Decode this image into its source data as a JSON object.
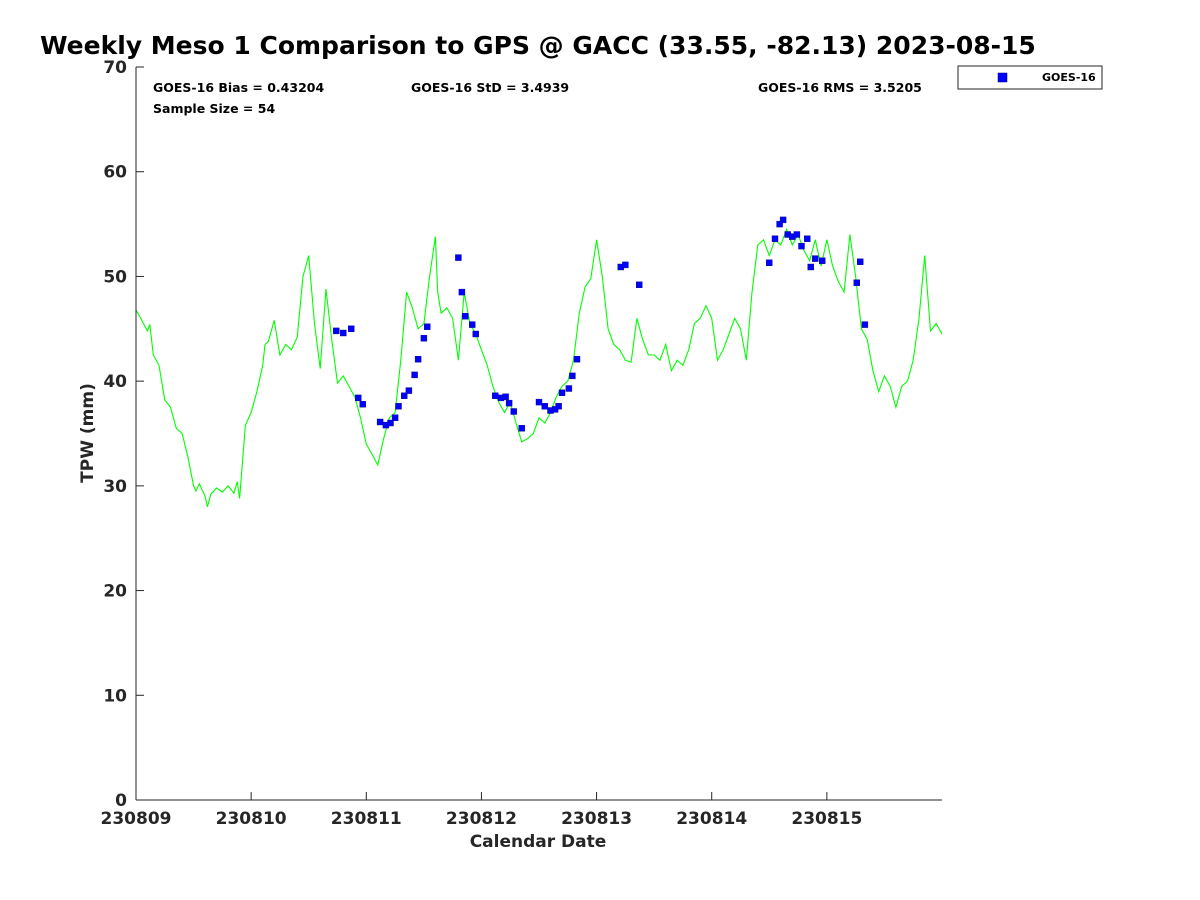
{
  "chart_data": {
    "type": "scatter",
    "title": "Weekly Meso 1 Comparison to GPS @ GACC (33.55, -82.13) 2023-08-15",
    "xlabel": "Calendar Date",
    "ylabel": "TPW (mm)",
    "xlim": [
      230809,
      230816
    ],
    "ylim": [
      0,
      70
    ],
    "x_ticks": [
      230809,
      230810,
      230811,
      230812,
      230813,
      230814,
      230815
    ],
    "x_tick_labels": [
      "230809",
      "230810",
      "230811",
      "230812",
      "230813",
      "230814",
      "230815"
    ],
    "y_ticks": [
      0,
      10,
      20,
      30,
      40,
      50,
      60,
      70
    ],
    "y_tick_labels": [
      "0",
      "10",
      "20",
      "30",
      "40",
      "50",
      "60",
      "70"
    ],
    "grid": false,
    "legend": {
      "position": "top-right-outside",
      "entries": [
        "GOES-16"
      ]
    },
    "stats": {
      "bias": "GOES-16 Bias = 0.43204",
      "std": "GOES-16 StD = 3.4939",
      "rms": "GOES-16 RMS = 3.5205",
      "sample": "Sample Size = 54"
    },
    "series": [
      {
        "name": "GOES-16",
        "kind": "scatter",
        "marker": "square",
        "color": "#0000ff",
        "x": [
          230810.74,
          230810.8,
          230810.87,
          230810.93,
          230810.97,
          230811.12,
          230811.17,
          230811.21,
          230811.25,
          230811.28,
          230811.33,
          230811.37,
          230811.42,
          230811.45,
          230811.5,
          230811.53,
          230811.8,
          230811.83,
          230811.86,
          230811.92,
          230811.95,
          230812.12,
          230812.17,
          230812.21,
          230812.24,
          230812.28,
          230812.35,
          230812.5,
          230812.55,
          230812.6,
          230812.64,
          230812.67,
          230812.7,
          230812.76,
          230812.79,
          230812.83,
          230813.21,
          230813.25,
          230813.37,
          230814.5,
          230814.55,
          230814.59,
          230814.62,
          230814.66,
          230814.7,
          230814.74,
          230814.78,
          230814.83,
          230814.86,
          230814.9,
          230814.96,
          230815.26,
          230815.29,
          230815.33
        ],
        "y": [
          44.8,
          44.6,
          45.0,
          38.4,
          37.8,
          36.1,
          35.8,
          36.0,
          36.5,
          37.6,
          38.6,
          39.1,
          40.6,
          42.1,
          44.1,
          45.2,
          51.8,
          48.5,
          46.2,
          45.4,
          44.5,
          38.6,
          38.4,
          38.5,
          37.9,
          37.1,
          35.5,
          38.0,
          37.6,
          37.2,
          37.3,
          37.6,
          38.9,
          39.3,
          40.5,
          42.1,
          50.9,
          51.1,
          49.2,
          51.3,
          53.6,
          55.0,
          55.4,
          54.0,
          53.8,
          54.0,
          52.9,
          53.6,
          50.9,
          51.7,
          51.5,
          49.4,
          51.4,
          45.4
        ]
      },
      {
        "name": "GPS",
        "kind": "line",
        "color": "#00ff00",
        "x": [
          230809.0,
          230809.05,
          230809.1,
          230809.12,
          230809.15,
          230809.2,
          230809.25,
          230809.3,
          230809.35,
          230809.4,
          230809.45,
          230809.5,
          230809.52,
          230809.55,
          230809.6,
          230809.62,
          230809.65,
          230809.7,
          230809.75,
          230809.8,
          230809.85,
          230809.88,
          230809.9,
          230809.95,
          230810.0,
          230810.05,
          230810.1,
          230810.12,
          230810.15,
          230810.2,
          230810.25,
          230810.3,
          230810.35,
          230810.4,
          230810.45,
          230810.5,
          230810.55,
          230810.6,
          230810.65,
          230810.7,
          230810.75,
          230810.8,
          230810.85,
          230810.9,
          230810.95,
          230811.0,
          230811.05,
          230811.1,
          230811.15,
          230811.2,
          230811.25,
          230811.3,
          230811.35,
          230811.4,
          230811.45,
          230811.5,
          230811.55,
          230811.6,
          230811.62,
          230811.65,
          230811.7,
          230811.75,
          230811.8,
          230811.85,
          230811.9,
          230811.95,
          230812.0,
          230812.05,
          230812.1,
          230812.15,
          230812.2,
          230812.25,
          230812.3,
          230812.35,
          230812.4,
          230812.45,
          230812.5,
          230812.55,
          230812.6,
          230812.65,
          230812.7,
          230812.75,
          230812.8,
          230812.85,
          230812.9,
          230812.95,
          230813.0,
          230813.05,
          230813.1,
          230813.15,
          230813.2,
          230813.25,
          230813.3,
          230813.35,
          230813.4,
          230813.45,
          230813.5,
          230813.55,
          230813.6,
          230813.65,
          230813.7,
          230813.75,
          230813.8,
          230813.85,
          230813.9,
          230813.95,
          230814.0,
          230814.05,
          230814.1,
          230814.15,
          230814.2,
          230814.25,
          230814.3,
          230814.35,
          230814.4,
          230814.45,
          230814.5,
          230814.55,
          230814.6,
          230814.65,
          230814.7,
          230814.75,
          230814.8,
          230814.85,
          230814.9,
          230814.95,
          230815.0,
          230815.05,
          230815.1,
          230815.15,
          230815.2,
          230815.25,
          230815.3,
          230815.35,
          230815.4,
          230815.45,
          230815.5,
          230815.55,
          230815.6,
          230815.65,
          230815.7,
          230815.75,
          230815.8,
          230815.85,
          230815.9,
          230815.95,
          230816.0
        ],
        "y": [
          46.8,
          45.8,
          44.8,
          45.4,
          42.5,
          41.5,
          38.2,
          37.5,
          35.5,
          35.0,
          32.8,
          30.0,
          29.5,
          30.2,
          29.0,
          28.0,
          29.2,
          29.8,
          29.4,
          30.0,
          29.3,
          30.4,
          28.8,
          35.8,
          37.0,
          39.0,
          41.5,
          43.5,
          43.8,
          45.8,
          42.5,
          43.5,
          43.0,
          44.2,
          50.0,
          52.0,
          45.5,
          41.2,
          48.8,
          44.0,
          39.8,
          40.5,
          39.5,
          38.5,
          36.5,
          34.0,
          33.0,
          32.0,
          34.5,
          36.5,
          37.0,
          42.0,
          48.5,
          47.0,
          45.0,
          45.5,
          50.0,
          53.8,
          48.5,
          46.5,
          47.0,
          46.0,
          42.0,
          48.5,
          45.5,
          44.5,
          43.0,
          41.5,
          39.5,
          38.0,
          37.0,
          38.0,
          36.0,
          34.2,
          34.5,
          35.0,
          36.5,
          36.0,
          37.0,
          38.5,
          39.5,
          40.0,
          42.0,
          46.5,
          49.0,
          49.8,
          53.5,
          50.0,
          45.0,
          43.5,
          43.0,
          42.0,
          41.8,
          46.0,
          44.0,
          42.5,
          42.5,
          42.0,
          43.5,
          41.0,
          42.0,
          41.5,
          43.0,
          45.5,
          46.0,
          47.2,
          46.0,
          42.0,
          43.0,
          44.5,
          46.0,
          45.0,
          42.0,
          48.5,
          53.0,
          53.5,
          52.0,
          53.5,
          53.0,
          54.5,
          53.0,
          54.0,
          52.5,
          51.5,
          53.5,
          51.0,
          53.5,
          51.0,
          49.5,
          48.5,
          54.0,
          50.0,
          45.0,
          44.0,
          41.0,
          39.0,
          40.5,
          39.5,
          37.5,
          39.5,
          40.0,
          42.0,
          46.0,
          52.0,
          44.8,
          45.5,
          44.5
        ]
      }
    ]
  }
}
